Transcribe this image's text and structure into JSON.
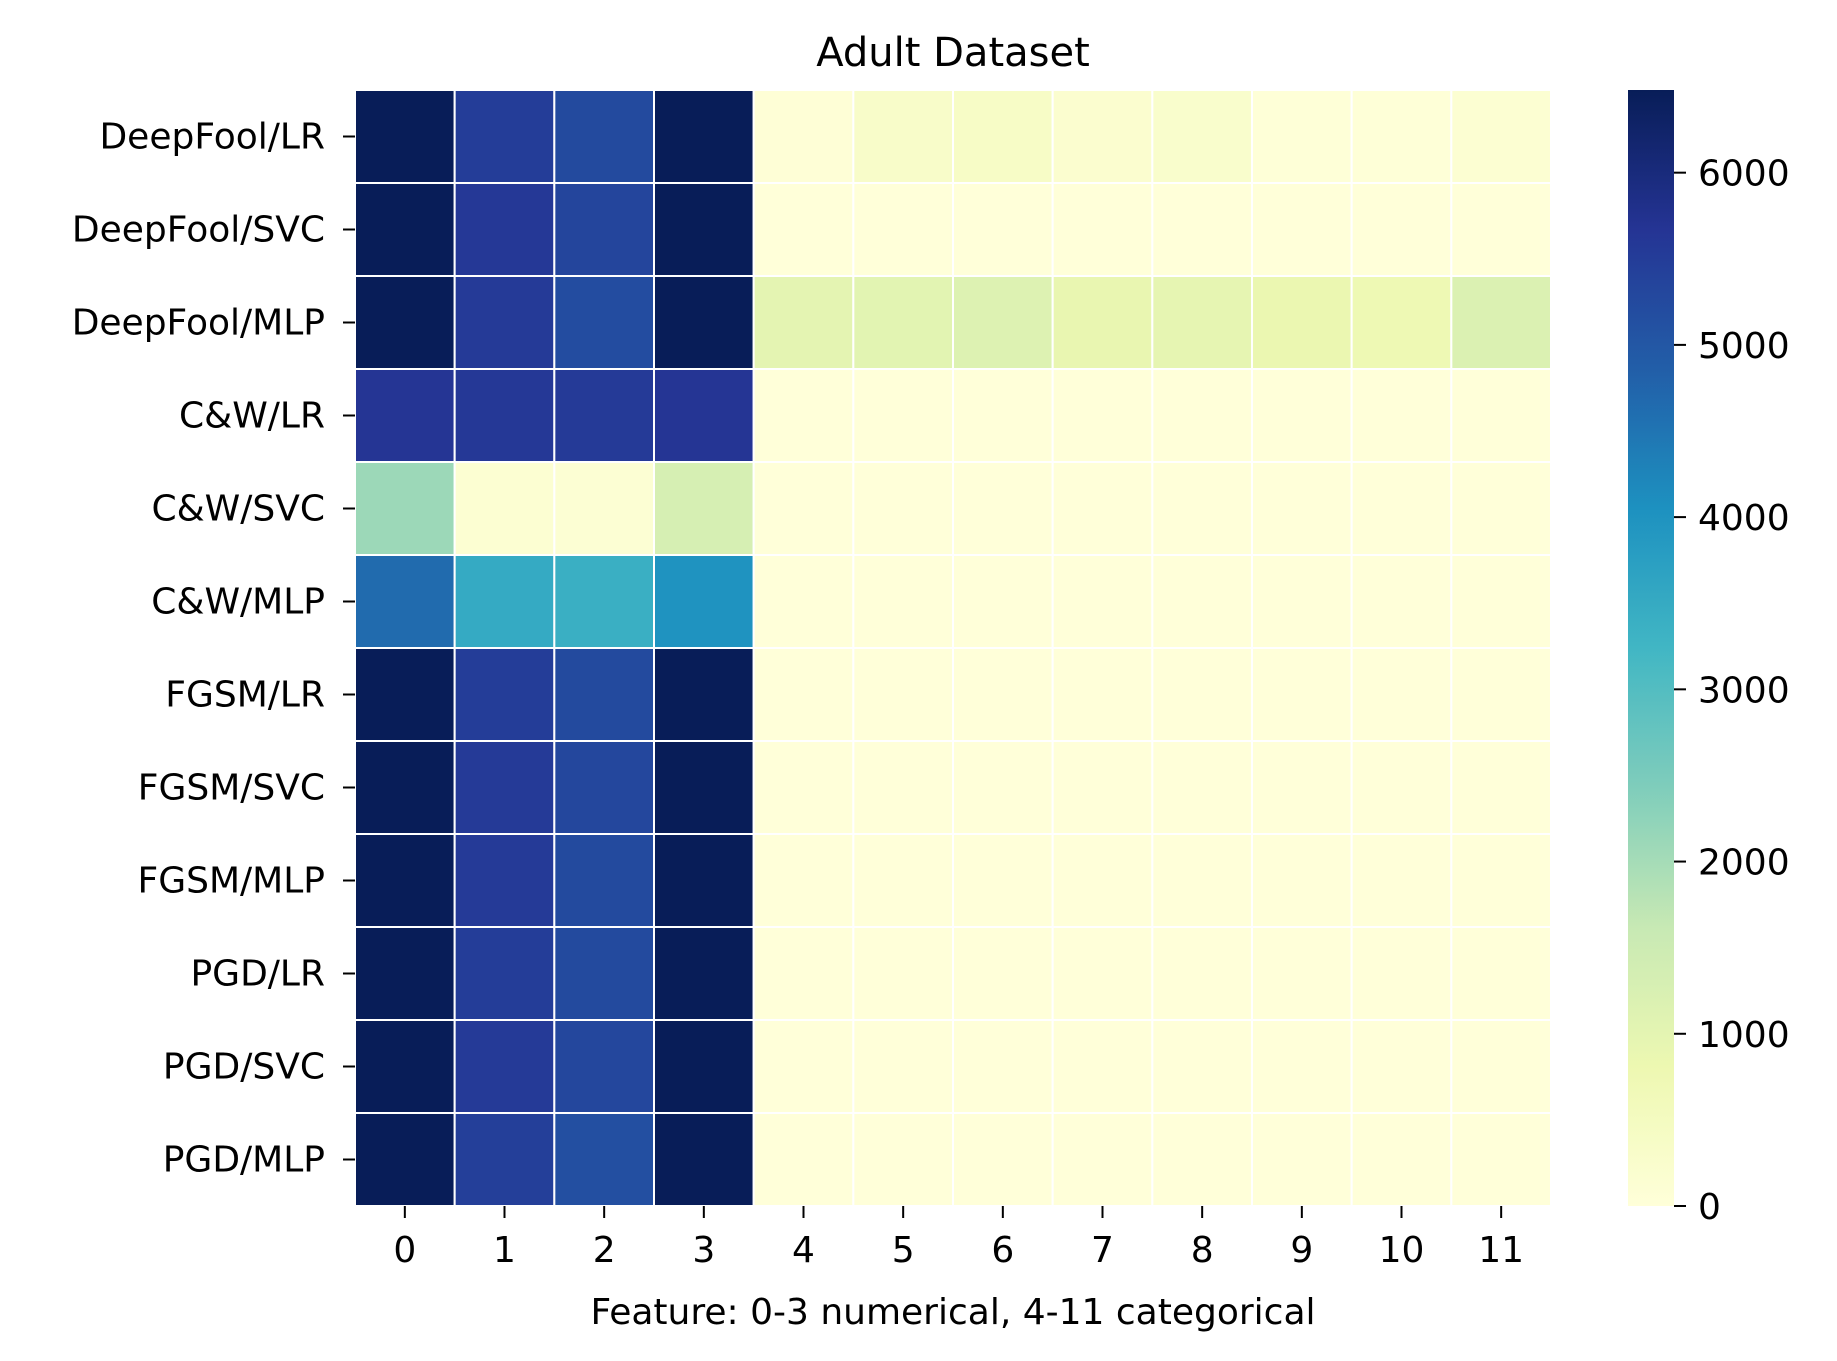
{
  "chart_data": {
    "type": "heatmap",
    "title": "Adult Dataset",
    "xlabel": "Feature: 0-3 numerical, 4-11 categorical",
    "ylabel": "",
    "x_categories": [
      "0",
      "1",
      "2",
      "3",
      "4",
      "5",
      "6",
      "7",
      "8",
      "9",
      "10",
      "11"
    ],
    "y_categories": [
      "DeepFool/LR",
      "DeepFool/SVC",
      "DeepFool/MLP",
      "C&W/LR",
      "C&W/SVC",
      "C&W/MLP",
      "FGSM/LR",
      "FGSM/SVC",
      "FGSM/MLP",
      "PGD/LR",
      "PGD/SVC",
      "PGD/MLP"
    ],
    "values": [
      [
        6480,
        5500,
        5250,
        6480,
        60,
        320,
        380,
        200,
        260,
        40,
        40,
        150
      ],
      [
        6480,
        5600,
        5350,
        6480,
        0,
        0,
        0,
        0,
        0,
        0,
        0,
        0
      ],
      [
        6480,
        5550,
        5200,
        6480,
        1000,
        1050,
        1150,
        900,
        950,
        850,
        750,
        1200
      ],
      [
        5650,
        5600,
        5550,
        5650,
        10,
        10,
        10,
        10,
        10,
        10,
        10,
        10
      ],
      [
        2100,
        150,
        120,
        1300,
        10,
        10,
        10,
        10,
        10,
        10,
        10,
        10
      ],
      [
        4650,
        3500,
        3400,
        4000,
        10,
        10,
        10,
        10,
        10,
        10,
        10,
        10
      ],
      [
        6480,
        5500,
        5250,
        6480,
        10,
        10,
        10,
        10,
        10,
        10,
        10,
        10
      ],
      [
        6480,
        5550,
        5300,
        6480,
        10,
        10,
        10,
        10,
        10,
        10,
        10,
        10
      ],
      [
        6480,
        5550,
        5250,
        6480,
        10,
        10,
        10,
        10,
        10,
        10,
        10,
        10
      ],
      [
        6480,
        5500,
        5250,
        6480,
        10,
        10,
        10,
        10,
        10,
        10,
        10,
        10
      ],
      [
        6480,
        5550,
        5300,
        6480,
        10,
        10,
        10,
        10,
        10,
        10,
        10,
        10
      ],
      [
        6480,
        5450,
        5150,
        6480,
        10,
        10,
        10,
        10,
        10,
        10,
        10,
        10
      ]
    ],
    "colorbar": {
      "min": 0,
      "max": 6480,
      "ticks": [
        0,
        1000,
        2000,
        3000,
        4000,
        5000,
        6000
      ],
      "tick_labels": [
        "0",
        "1000",
        "2000",
        "3000",
        "4000",
        "5000",
        "6000"
      ],
      "colormap": "YlGnBu",
      "colors": [
        "#ffffd9",
        "#edf8b1",
        "#c7e9b4",
        "#7fcdbb",
        "#41b6c4",
        "#1d91c0",
        "#225ea8",
        "#253494",
        "#081d58"
      ]
    },
    "cell_line_color": "#ffffff",
    "grid": false,
    "legend": "colorbar-right"
  }
}
